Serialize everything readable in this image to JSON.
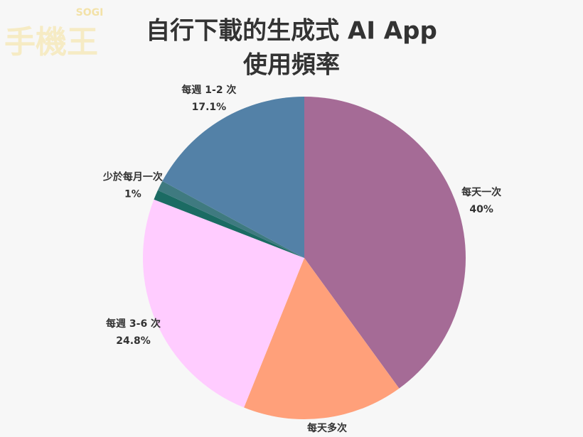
{
  "chart_data": {
    "type": "pie",
    "title": [
      "自行下載的生成式 AI App",
      "使用頻率"
    ],
    "logo": [
      "SOGI",
      "手機王"
    ],
    "categories": [
      "每天一次",
      "每天多次",
      "每週 3-6 次",
      "少於每月一次",
      null,
      "每週 1-2 次"
    ],
    "values": [
      40,
      16.1,
      24.8,
      1,
      1,
      17.1
    ],
    "value_labels": [
      "40%",
      null,
      "24.8%",
      "1%",
      null,
      "17.1%"
    ],
    "colors": [
      "#a56b96",
      "#ffa07a",
      "#ffccff",
      "#1b6b63",
      "#3f7a80",
      "#5381a7"
    ]
  }
}
